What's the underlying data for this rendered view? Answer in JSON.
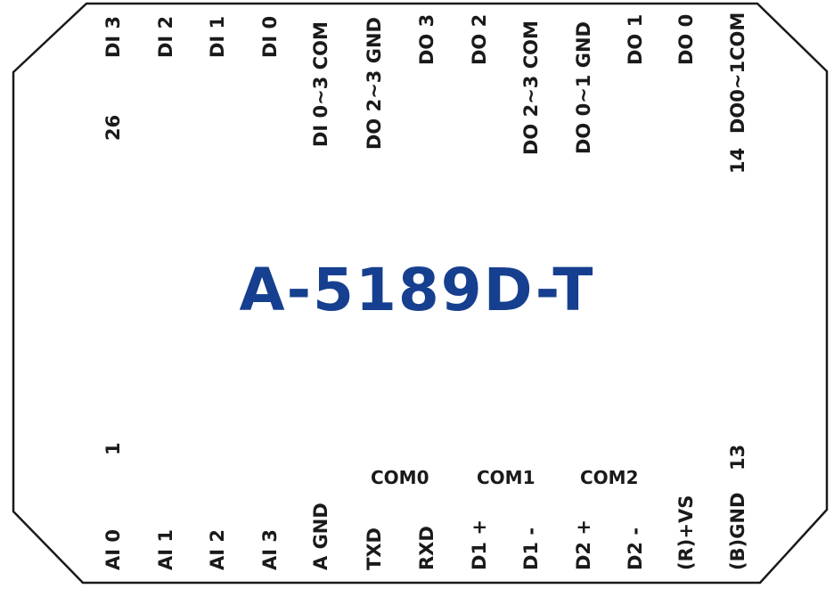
{
  "model": {
    "name": "A-5189D-T",
    "color": "#163f8f"
  },
  "top_pins": {
    "pin_26": "26",
    "pin_14": "14",
    "di3": "DI 3",
    "di2": "DI 2",
    "di1": "DI 1",
    "di0": "DI 0",
    "di0_3_com": "DI 0~3 COM",
    "do2_3_gnd": "DO 2~3 GND",
    "do3": "DO 3",
    "do2": "DO 2",
    "do2_3_com": "DO 2~3 COM",
    "do0_1_gnd": "DO 0~1 GND",
    "do1": "DO 1",
    "do0": "DO 0",
    "do0_1_com": "DO0~1COM"
  },
  "bottom_pins": {
    "pin_1": "1",
    "pin_13": "13",
    "ai0": "AI 0",
    "ai1": "AI 1",
    "ai2": "AI 2",
    "ai3": "AI 3",
    "agnd": "A GND",
    "txd": "TXD",
    "rxd": "RXD",
    "d1p": "D1 +",
    "d1m": "D1 -",
    "d2p": "D2 +",
    "d2m": "D2 -",
    "rvs": "(R)+VS",
    "bgnd": "(B)GND"
  },
  "com_ports": {
    "com0": "COM0",
    "com1": "COM1",
    "com2": "COM2"
  }
}
